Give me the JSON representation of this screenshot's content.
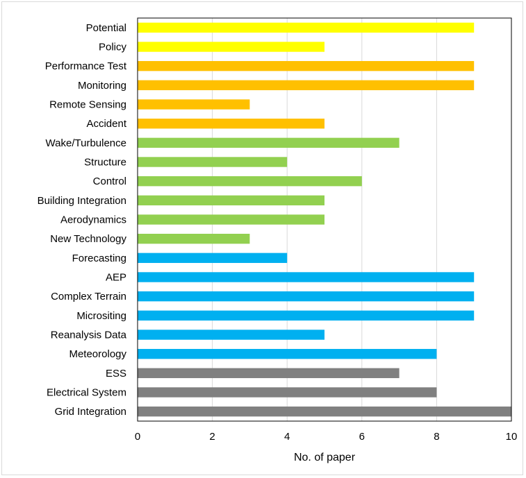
{
  "chart_data": {
    "type": "bar",
    "orientation": "horizontal",
    "title": "",
    "xlabel": "No. of paper",
    "ylabel": "",
    "xlim": [
      0,
      10
    ],
    "xticks": [
      0,
      2,
      4,
      6,
      8,
      10
    ],
    "grid": "vertical",
    "legend": "none",
    "categories": [
      "Potential",
      "Policy",
      "Performance Test",
      "Monitoring",
      "Remote Sensing",
      "Accident",
      "Wake/Turbulence",
      "Structure",
      "Control",
      "Building Integration",
      "Aerodynamics",
      "New Technology",
      "Forecasting",
      "AEP",
      "Complex Terrain",
      "Micrositing",
      "Reanalysis Data",
      "Meteorology",
      "ESS",
      "Electrical System",
      "Grid Integration"
    ],
    "values": [
      9,
      5,
      9,
      9,
      3,
      5,
      7,
      4,
      6,
      5,
      5,
      3,
      4,
      9,
      9,
      9,
      5,
      8,
      7,
      8,
      10
    ],
    "bar_colors": [
      "#ffff00",
      "#ffff00",
      "#ffc000",
      "#ffc000",
      "#ffc000",
      "#ffc000",
      "#92d050",
      "#92d050",
      "#92d050",
      "#92d050",
      "#92d050",
      "#92d050",
      "#00b0f0",
      "#00b0f0",
      "#00b0f0",
      "#00b0f0",
      "#00b0f0",
      "#00b0f0",
      "#808080",
      "#808080",
      "#808080"
    ]
  }
}
